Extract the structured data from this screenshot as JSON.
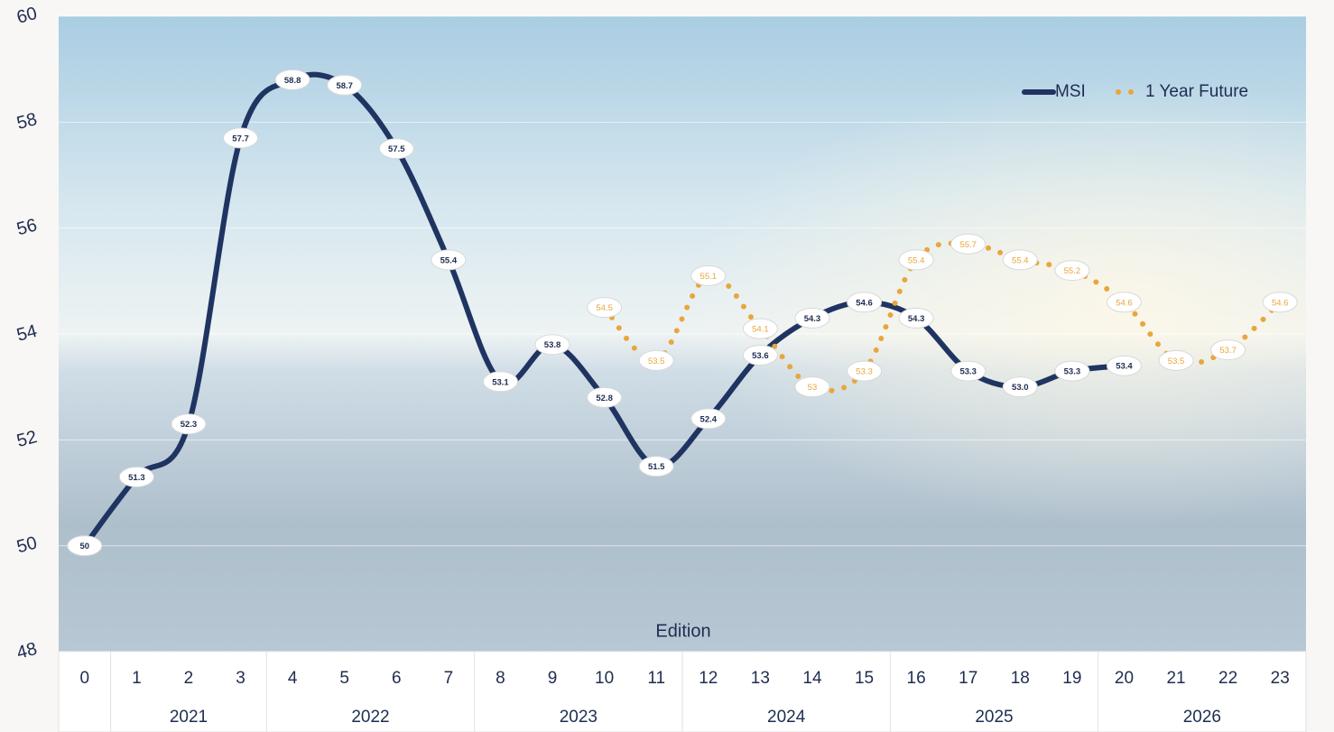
{
  "chart_data": {
    "type": "line",
    "x_label": "Edition",
    "categories": [
      "0",
      "1",
      "2",
      "3",
      "4",
      "5",
      "6",
      "7",
      "8",
      "9",
      "10",
      "11",
      "12",
      "13",
      "14",
      "15",
      "16",
      "17",
      "18",
      "19",
      "20",
      "21",
      "22",
      "23"
    ],
    "category_groups": [
      null,
      "2021",
      "2021",
      "2021",
      "2022",
      "2022",
      "2022",
      "2022",
      "2023",
      "2023",
      "2023",
      "2023",
      "2024",
      "2024",
      "2024",
      "2024",
      "2025",
      "2025",
      "2025",
      "2025",
      "2026",
      "2026",
      "2026",
      "2026"
    ],
    "series": [
      {
        "name": "MSI",
        "color": "#1f3461",
        "style": "solid",
        "values": [
          50,
          51.3,
          52.3,
          57.7,
          58.8,
          58.7,
          57.5,
          55.4,
          53.1,
          53.8,
          52.8,
          51.5,
          52.4,
          53.6,
          54.3,
          54.6,
          54.3,
          53.3,
          53.0,
          53.3,
          53.4,
          null,
          null,
          null
        ],
        "value_labels": [
          "50",
          "51.3",
          "52.3",
          "57.7",
          "58.8",
          "58.7",
          "57.5",
          "55.4",
          "53.1",
          "53.8",
          "52.8",
          "51.5",
          "52.4",
          "53.6",
          "54.3",
          "54.6",
          "54.3",
          "53.3",
          "53.0",
          "53.3",
          "53.4",
          null,
          null,
          null
        ]
      },
      {
        "name": "1 Year Future",
        "color": "#e8a63c",
        "style": "dotted",
        "values": [
          null,
          null,
          null,
          null,
          null,
          null,
          null,
          null,
          null,
          null,
          54.5,
          53.5,
          55.1,
          54.1,
          53,
          53.3,
          55.4,
          55.7,
          55.4,
          55.2,
          54.6,
          53.5,
          53.7,
          54.6
        ]
      }
    ],
    "ylim": [
      48,
      60
    ],
    "yticks": [
      48,
      50,
      52,
      54,
      56,
      58,
      60
    ],
    "grid": true,
    "legend": "top-right"
  }
}
